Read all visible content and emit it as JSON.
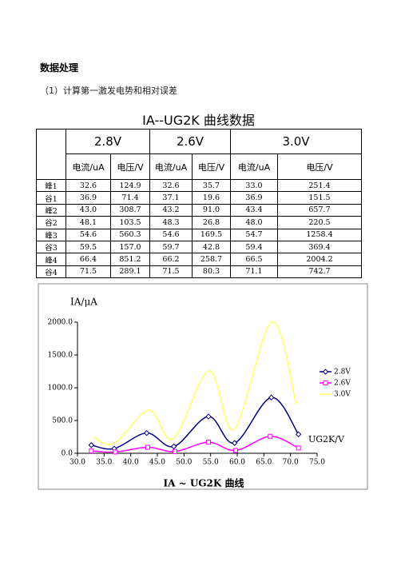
{
  "document": {
    "heading": "数据处理",
    "subheading": "（1）计算第一激发电势和相对误差",
    "table": {
      "title": "IA--UG2K 曲线数据",
      "groups": [
        "2.8V",
        "2.6V",
        "3.0V"
      ],
      "columns": [
        "电流/uA",
        "电压/V",
        "电流/uA",
        "电压/V",
        "电流/uA",
        "电压/V"
      ],
      "rows": [
        [
          "峰1",
          "32.6",
          "124.9",
          "32.6",
          "35.7",
          "33.0",
          "251.4"
        ],
        [
          "谷1",
          "36.9",
          "71.4",
          "37.1",
          "19.6",
          "36.9",
          "151.5"
        ],
        [
          "峰2",
          "43.0",
          "308.7",
          "43.2",
          "91.0",
          "43.4",
          "657.7"
        ],
        [
          "谷2",
          "48.1",
          "103.5",
          "48.3",
          "26.8",
          "48.0",
          "220.5"
        ],
        [
          "峰3",
          "54.6",
          "560.3",
          "54.6",
          "169.5",
          "54.7",
          "1258.4"
        ],
        [
          "谷3",
          "59.5",
          "157.0",
          "59.7",
          "42.8",
          "59.4",
          "369.4"
        ],
        [
          "峰4",
          "66.4",
          "851.2",
          "66.2",
          "258.7",
          "66.5",
          "2004.2"
        ],
        [
          "谷4",
          "71.5",
          "289.1",
          "71.5",
          "80.3",
          "71.1",
          "742.7"
        ]
      ]
    }
  },
  "chart_data": {
    "type": "line",
    "title": "IA ~ UG2K 曲线",
    "y_label": "IA/μA",
    "x_label": "UG2K/V",
    "xlim": [
      30,
      75
    ],
    "ylim": [
      0,
      2000
    ],
    "xticks": [
      {
        "value": 30,
        "label": "30.0"
      },
      {
        "value": 35,
        "label": "35.0"
      },
      {
        "value": 40,
        "label": "40.0"
      },
      {
        "value": 45,
        "label": "45.0"
      },
      {
        "value": 50,
        "label": "50.0"
      },
      {
        "value": 55,
        "label": "55.0"
      },
      {
        "value": 60,
        "label": "60.0"
      },
      {
        "value": 65,
        "label": "65.0"
      },
      {
        "value": 70,
        "label": "70.0"
      },
      {
        "value": 75,
        "label": "75.0"
      }
    ],
    "yticks": [
      {
        "value": 0,
        "label": "0.0"
      },
      {
        "value": 500,
        "label": "500.0"
      },
      {
        "value": 1000,
        "label": "1000.0"
      },
      {
        "value": 1500,
        "label": "1500.0"
      },
      {
        "value": 2000,
        "label": "2000.0"
      }
    ],
    "legend": "right",
    "grid": false,
    "series": [
      {
        "name": "2.8V",
        "color": "#000080",
        "marker": "diamond",
        "x": [
          32.6,
          36.9,
          43.0,
          48.1,
          54.6,
          59.5,
          66.4,
          71.5
        ],
        "values": [
          124.9,
          71.4,
          308.7,
          103.5,
          560.3,
          157.0,
          851.2,
          289.1
        ]
      },
      {
        "name": "2.6V",
        "color": "#ff00ff",
        "marker": "square",
        "x": [
          32.6,
          37.1,
          43.2,
          48.3,
          54.6,
          59.7,
          66.2,
          71.5
        ],
        "values": [
          35.7,
          19.6,
          91.0,
          26.8,
          169.5,
          42.8,
          258.7,
          80.3
        ]
      },
      {
        "name": "3.0V",
        "color": "#ffff66",
        "marker": "none",
        "x": [
          33.0,
          36.9,
          43.4,
          48.0,
          54.7,
          59.4,
          66.5,
          71.1
        ],
        "values": [
          251.4,
          151.5,
          657.7,
          220.5,
          1258.4,
          369.4,
          2004.2,
          742.7
        ]
      }
    ]
  }
}
